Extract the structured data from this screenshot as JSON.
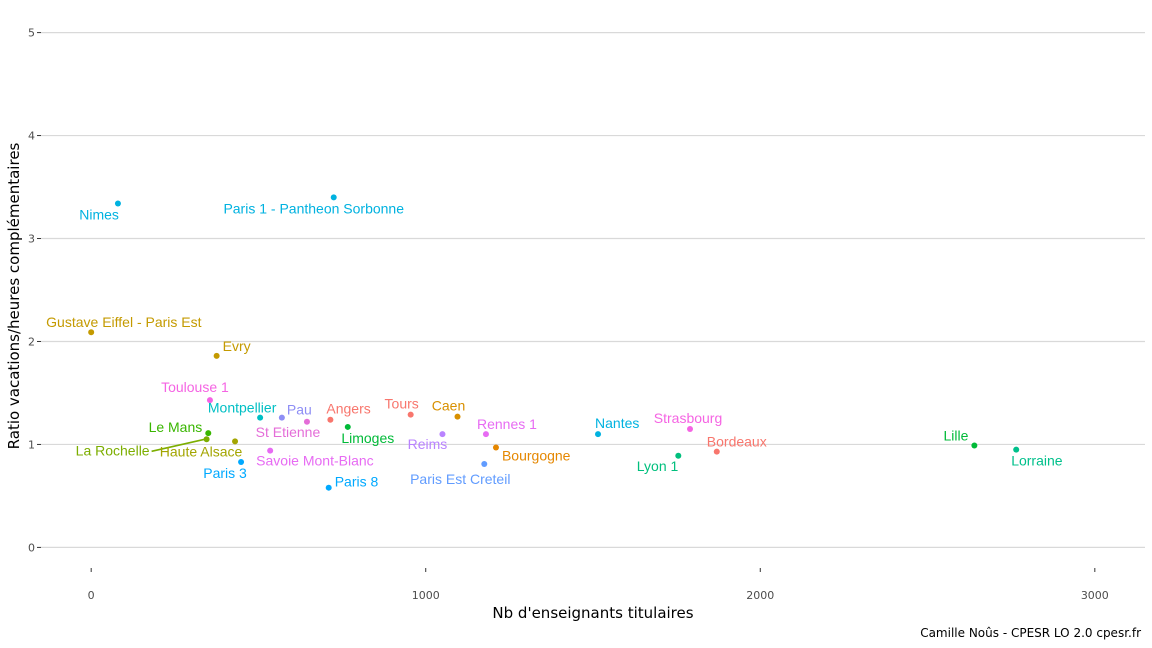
{
  "chart_data": {
    "type": "scatter",
    "xlabel": "Nb d'enseignants titulaires",
    "ylabel": "Ratio vacations/heures complémentaires",
    "xlim": [
      -150,
      3150
    ],
    "ylim": [
      -0.2,
      5.2
    ],
    "xticks": [
      0,
      1000,
      2000,
      3000
    ],
    "yticks": [
      0,
      1,
      2,
      3,
      4,
      5
    ],
    "xtick_labels": [
      "0",
      "1000",
      "2000",
      "3000"
    ],
    "ytick_labels": [
      "0",
      "1",
      "2",
      "3",
      "4",
      "5"
    ],
    "grid": "horizontal",
    "caption": "Camille Noûs - CPESR LO 2.0 cpesr.fr",
    "points": [
      {
        "label": "Nimes",
        "x": 80,
        "y": 3.34,
        "color": "#00b2e0",
        "anchor": "end",
        "dx": 1,
        "dy": 16
      },
      {
        "label": "Paris 1 - Pantheon Sorbonne",
        "x": 725,
        "y": 3.4,
        "color": "#00b2e0",
        "anchor": "middle",
        "dx": -20,
        "dy": 16
      },
      {
        "label": "Gustave Eiffel - Paris Est",
        "x": 0,
        "y": 2.09,
        "color": "#c49a00",
        "anchor": "start",
        "dx": -45,
        "dy": -5
      },
      {
        "label": "Evry",
        "x": 375,
        "y": 1.86,
        "color": "#c49a00",
        "anchor": "start",
        "dx": 6,
        "dy": -5
      },
      {
        "label": "Toulouse 1",
        "x": 355,
        "y": 1.43,
        "color": "#f564e3",
        "anchor": "middle",
        "dx": -15,
        "dy": -8
      },
      {
        "label": "Montpellier",
        "x": 505,
        "y": 1.26,
        "color": "#00bfc4",
        "anchor": "middle",
        "dx": -18,
        "dy": -5
      },
      {
        "label": "Pau",
        "x": 570,
        "y": 1.26,
        "color": "#8e8ef5",
        "anchor": "start",
        "dx": 5,
        "dy": -3
      },
      {
        "label": "St Etienne",
        "x": 645,
        "y": 1.22,
        "color": "#e46dd8",
        "anchor": "middle",
        "dx": -19,
        "dy": 15
      },
      {
        "label": "Angers",
        "x": 715,
        "y": 1.24,
        "color": "#f8766d",
        "anchor": "start",
        "dx": -4,
        "dy": -6
      },
      {
        "label": "Limoges",
        "x": 767,
        "y": 1.17,
        "color": "#00ba38",
        "anchor": "middle",
        "dx": 20,
        "dy": 16
      },
      {
        "label": "Tours",
        "x": 955,
        "y": 1.29,
        "color": "#f8766d",
        "anchor": "middle",
        "dx": -9,
        "dy": -6
      },
      {
        "label": "Caen",
        "x": 1095,
        "y": 1.27,
        "color": "#d89000",
        "anchor": "middle",
        "dx": -9,
        "dy": -6
      },
      {
        "label": "Reims",
        "x": 1050,
        "y": 1.1,
        "color": "#b983ff",
        "anchor": "middle",
        "dx": -15,
        "dy": 15
      },
      {
        "label": "Rennes 1",
        "x": 1180,
        "y": 1.1,
        "color": "#e76bf3",
        "anchor": "middle",
        "dx": 21,
        "dy": -5
      },
      {
        "label": "Bourgogne",
        "x": 1210,
        "y": 0.97,
        "color": "#e58700",
        "anchor": "start",
        "dx": 6,
        "dy": 13
      },
      {
        "label": "Paris Est Creteil",
        "x": 1175,
        "y": 0.81,
        "color": "#619cff",
        "anchor": "middle",
        "dx": -24,
        "dy": 20
      },
      {
        "label": "Le Mans",
        "x": 350,
        "y": 1.11,
        "color": "#39b600",
        "anchor": "end",
        "dx": -6,
        "dy": -1
      },
      {
        "label": "La Rochelle",
        "x": 345,
        "y": 1.05,
        "color": "#7cae00",
        "anchor": "end",
        "dx": -57,
        "dy": 16,
        "leader": true
      },
      {
        "label": "Haute Alsace",
        "x": 430,
        "y": 1.03,
        "color": "#a3a500",
        "anchor": "middle",
        "dx": -34,
        "dy": 15
      },
      {
        "label": "Savoie Mont-Blanc",
        "x": 535,
        "y": 0.94,
        "color": "#e76bf3",
        "anchor": "start",
        "dx": -14,
        "dy": 15
      },
      {
        "label": "Paris 3",
        "x": 448,
        "y": 0.83,
        "color": "#00a9ff",
        "anchor": "middle",
        "dx": -16,
        "dy": 16
      },
      {
        "label": "Paris 8",
        "x": 710,
        "y": 0.58,
        "color": "#00a9ff",
        "anchor": "start",
        "dx": 6,
        "dy": -1
      },
      {
        "label": "Nantes",
        "x": 1515,
        "y": 1.1,
        "color": "#00b2e0",
        "anchor": "start",
        "dx": -3,
        "dy": -6
      },
      {
        "label": "Strasbourg",
        "x": 1790,
        "y": 1.15,
        "color": "#f564e3",
        "anchor": "middle",
        "dx": -2,
        "dy": -6
      },
      {
        "label": "Bordeaux",
        "x": 1870,
        "y": 0.93,
        "color": "#f8766d",
        "anchor": "start",
        "dx": -10,
        "dy": -5
      },
      {
        "label": "Lyon 1",
        "x": 1755,
        "y": 0.89,
        "color": "#00bf7d",
        "anchor": "end",
        "dx": 0,
        "dy": 15
      },
      {
        "label": "Lille",
        "x": 2640,
        "y": 0.99,
        "color": "#00ba38",
        "anchor": "end",
        "dx": -6,
        "dy": -5
      },
      {
        "label": "Lorraine",
        "x": 2765,
        "y": 0.95,
        "color": "#00c08b",
        "anchor": "start",
        "dx": -5,
        "dy": 16
      }
    ]
  }
}
